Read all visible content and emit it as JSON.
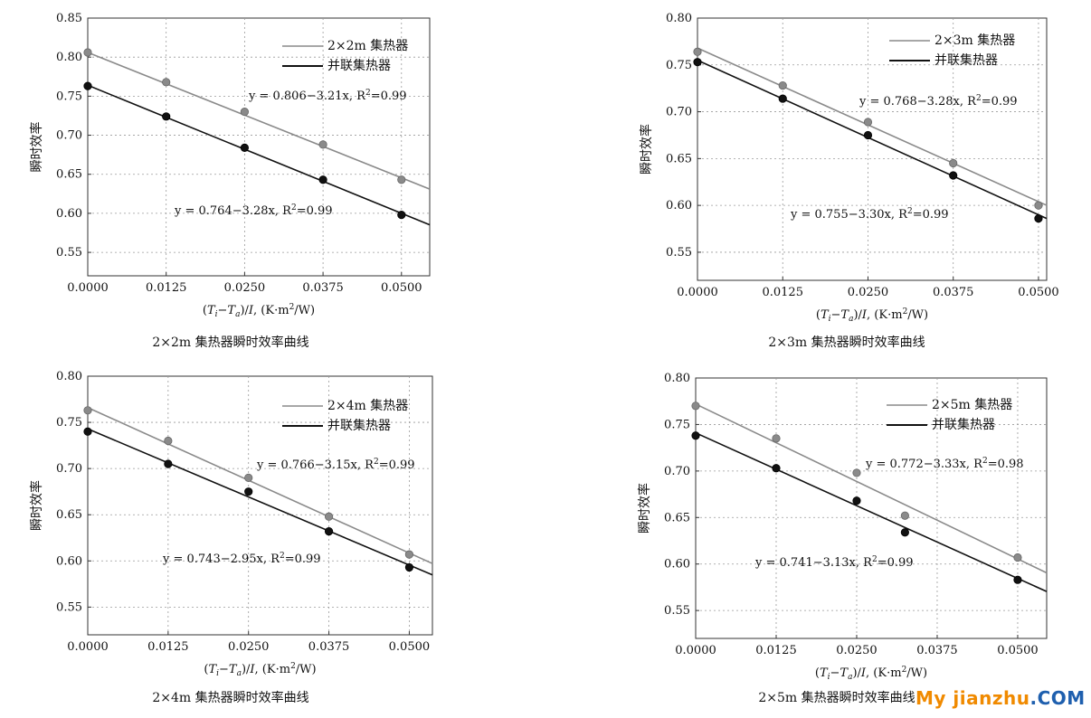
{
  "colors": {
    "series_a": "#8a8a8a",
    "series_b": "#111111",
    "grid": "#9a9a9a",
    "axis": "#333333"
  },
  "watermark": {
    "part1": "My jianzhu",
    "part2": ".COM"
  },
  "chart_data": [
    {
      "type": "scatter",
      "caption": "2×2m 集热器瞬时效率曲线",
      "xlabel": "(T_i−T_a)/I, (K·m²/W)",
      "ylabel": "瞬时效率",
      "xlim": [
        0,
        0.0545
      ],
      "ylim": [
        0.52,
        0.85
      ],
      "x_ticks": [
        "0.0000",
        "0.0125",
        "0.0250",
        "0.0375",
        "0.0500"
      ],
      "y_ticks": [
        "0.55",
        "0.60",
        "0.65",
        "0.70",
        "0.75",
        "0.80",
        "0.85"
      ],
      "grid": true,
      "legend_position": "top-right",
      "series": [
        {
          "name": "2×2m 集热器",
          "color": "series_a",
          "x": [
            0,
            0.0125,
            0.025,
            0.0375,
            0.05
          ],
          "y": [
            0.806,
            0.768,
            0.73,
            0.688,
            0.643
          ],
          "fit": {
            "intercept": 0.806,
            "slope": -3.21
          },
          "equation": "y = 0.806−3.21x, R²=0.99"
        },
        {
          "name": "并联集热器",
          "color": "series_b",
          "x": [
            0,
            0.0125,
            0.025,
            0.0375,
            0.05
          ],
          "y": [
            0.763,
            0.724,
            0.684,
            0.643,
            0.598
          ],
          "fit": {
            "intercept": 0.764,
            "slope": -3.28
          },
          "equation": "y = 0.764−3.28x, R²=0.99"
        }
      ]
    },
    {
      "type": "scatter",
      "caption": "2×3m 集热器瞬时效率曲线",
      "xlabel": "(T_i−T_a)/I, (K·m²/W)",
      "ylabel": "瞬时效率",
      "xlim": [
        0,
        0.0512
      ],
      "ylim": [
        0.52,
        0.8
      ],
      "x_ticks": [
        "0.0000",
        "0.0125",
        "0.0250",
        "0.0375",
        "0.0500"
      ],
      "y_ticks": [
        "0.55",
        "0.60",
        "0.65",
        "0.70",
        "0.75",
        "0.80"
      ],
      "grid": true,
      "legend_position": "top-right",
      "series": [
        {
          "name": "2×3m 集热器",
          "color": "series_a",
          "x": [
            0,
            0.0125,
            0.025,
            0.0375,
            0.05
          ],
          "y": [
            0.764,
            0.728,
            0.689,
            0.645,
            0.6
          ],
          "fit": {
            "intercept": 0.768,
            "slope": -3.28
          },
          "equation": "y = 0.768−3.28x, R²=0.99"
        },
        {
          "name": "并联集热器",
          "color": "series_b",
          "x": [
            0,
            0.0125,
            0.025,
            0.0375,
            0.05
          ],
          "y": [
            0.753,
            0.714,
            0.675,
            0.632,
            0.586
          ],
          "fit": {
            "intercept": 0.755,
            "slope": -3.3
          },
          "equation": "y = 0.755−3.30x, R²=0.99"
        }
      ]
    },
    {
      "type": "scatter",
      "caption": "2×4m 集热器瞬时效率曲线",
      "xlabel": "(T_i−T_a)/I, (K·m²/W)",
      "ylabel": "瞬时效率",
      "xlim": [
        0,
        0.0536
      ],
      "ylim": [
        0.52,
        0.8
      ],
      "x_ticks": [
        "0.0000",
        "0.0125",
        "0.0250",
        "0.0375",
        "0.0500"
      ],
      "y_ticks": [
        "0.55",
        "0.60",
        "0.65",
        "0.70",
        "0.75",
        "0.80"
      ],
      "grid": true,
      "legend_position": "top-right",
      "series": [
        {
          "name": "2×4m 集热器",
          "color": "series_a",
          "x": [
            0,
            0.0125,
            0.025,
            0.0375,
            0.05
          ],
          "y": [
            0.763,
            0.73,
            0.69,
            0.648,
            0.607
          ],
          "fit": {
            "intercept": 0.766,
            "slope": -3.15
          },
          "equation": "y = 0.766−3.15x, R²=0.99"
        },
        {
          "name": "并联集热器",
          "color": "series_b",
          "x": [
            0,
            0.0125,
            0.025,
            0.0375,
            0.05
          ],
          "y": [
            0.74,
            0.705,
            0.675,
            0.632,
            0.593
          ],
          "fit": {
            "intercept": 0.743,
            "slope": -2.95
          },
          "equation": "y = 0.743−2.95x, R²=0.99"
        }
      ]
    },
    {
      "type": "scatter",
      "caption": "2×5m 集热器瞬时效率曲线",
      "xlabel": "(T_i−T_a)/I, (K·m²/W)",
      "ylabel": "瞬时效率",
      "xlim": [
        0,
        0.0545
      ],
      "ylim": [
        0.52,
        0.8
      ],
      "x_ticks": [
        "0.0000",
        "0.0125",
        "0.0250",
        "0.0375",
        "0.0500"
      ],
      "y_ticks": [
        "0.55",
        "0.60",
        "0.65",
        "0.70",
        "0.75",
        "0.80"
      ],
      "grid": true,
      "legend_position": "top-right",
      "series": [
        {
          "name": "2×5m 集热器",
          "color": "series_a",
          "x": [
            0,
            0.0125,
            0.025,
            0.0325,
            0.05
          ],
          "y": [
            0.77,
            0.735,
            0.698,
            0.652,
            0.607
          ],
          "fit": {
            "intercept": 0.772,
            "slope": -3.33
          },
          "equation": "y = 0.772−3.33x, R²=0.98"
        },
        {
          "name": "并联集热器",
          "color": "series_b",
          "x": [
            0,
            0.0125,
            0.025,
            0.0325,
            0.05
          ],
          "y": [
            0.738,
            0.703,
            0.668,
            0.634,
            0.583
          ],
          "fit": {
            "intercept": 0.741,
            "slope": -3.13
          },
          "equation": "y = 0.741−3.13x, R²=0.99"
        }
      ]
    }
  ]
}
